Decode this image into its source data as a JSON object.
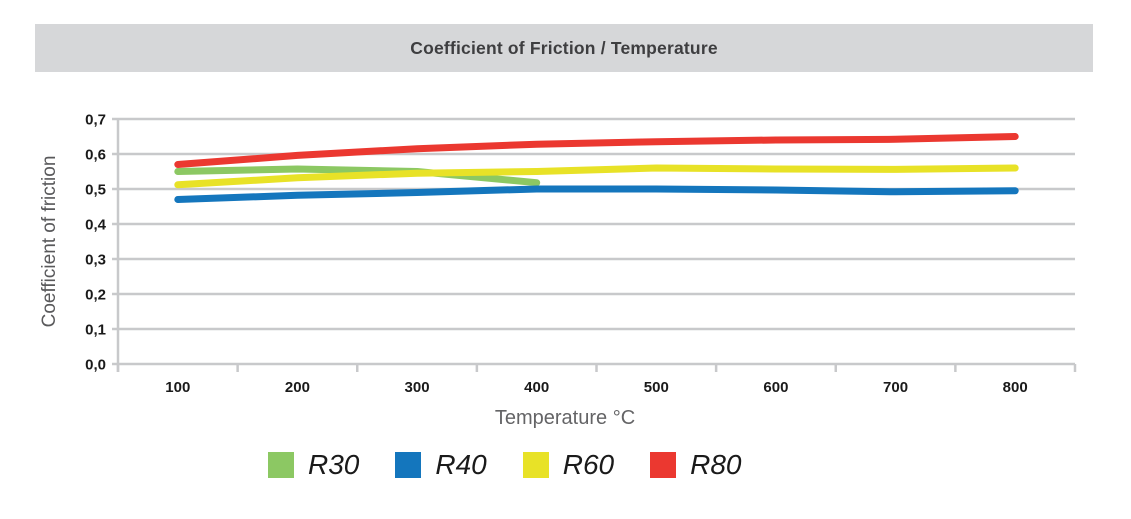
{
  "header": {
    "title": "Coefficient of Friction / Temperature",
    "background": "#D6D7D9"
  },
  "chart_data": {
    "type": "line",
    "title": "Coefficient of Friction / Temperature",
    "xlabel": "Temperature °C",
    "ylabel": "Coefficient of friction",
    "x_categories": [
      "100",
      "200",
      "300",
      "400",
      "500",
      "600",
      "700",
      "800"
    ],
    "ylim": [
      0,
      0.7
    ],
    "ytick_labels": [
      "0,0",
      "0,1",
      "0,2",
      "0,3",
      "0,4",
      "0,5",
      "0,6",
      "0,7"
    ],
    "grid": "horizontal",
    "legend_position": "bottom",
    "colors": {
      "axis_and_grid": "#C8C9CB",
      "tick_labels": "#1A1A1A",
      "y_axis_title": "#59595B",
      "x_axis_title": "#646466"
    },
    "series": [
      {
        "name": "R30",
        "color": "#8CC863",
        "values": [
          0.55,
          0.557,
          0.55,
          0.518,
          null,
          null,
          null,
          null
        ]
      },
      {
        "name": "R40",
        "color": "#1476BD",
        "values": [
          0.47,
          0.482,
          0.49,
          0.5,
          0.5,
          0.497,
          0.492,
          0.495
        ]
      },
      {
        "name": "R60",
        "color": "#E8E227",
        "values": [
          0.512,
          0.532,
          0.545,
          0.55,
          0.56,
          0.557,
          0.556,
          0.56
        ]
      },
      {
        "name": "R80",
        "color": "#EB3830",
        "values": [
          0.57,
          0.596,
          0.615,
          0.628,
          0.635,
          0.64,
          0.642,
          0.65
        ]
      }
    ]
  }
}
